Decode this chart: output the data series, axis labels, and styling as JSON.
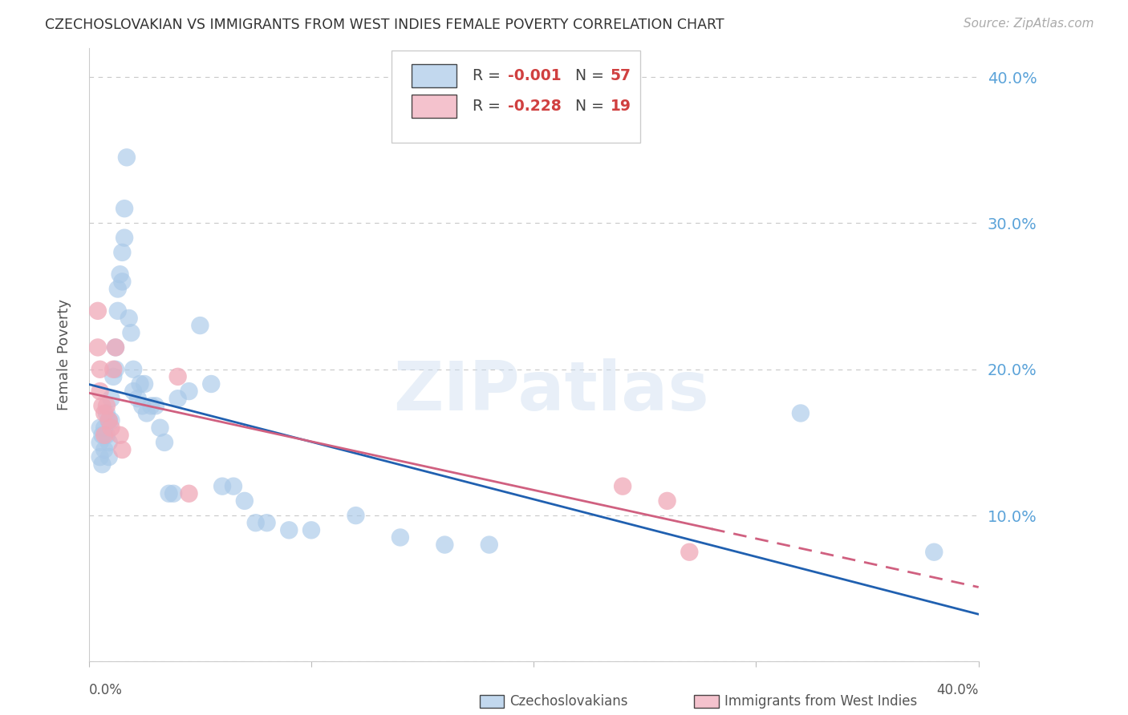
{
  "title": "CZECHOSLOVAKIAN VS IMMIGRANTS FROM WEST INDIES FEMALE POVERTY CORRELATION CHART",
  "source": "Source: ZipAtlas.com",
  "ylabel": "Female Poverty",
  "watermark": "ZIPatlas",
  "xlim": [
    0.0,
    0.4
  ],
  "ylim": [
    0.0,
    0.42
  ],
  "yticks": [
    0.0,
    0.1,
    0.2,
    0.3,
    0.4
  ],
  "ytick_labels": [
    "",
    "10.0%",
    "20.0%",
    "30.0%",
    "40.0%"
  ],
  "blue_color": "#a8c8e8",
  "pink_color": "#f0a8b8",
  "line_blue": "#2060b0",
  "line_pink": "#d06080",
  "axis_color": "#5ba3d9",
  "grid_color": "#c8c8c8",
  "title_color": "#333333",
  "czech_x": [
    0.005,
    0.005,
    0.005,
    0.006,
    0.006,
    0.007,
    0.007,
    0.008,
    0.008,
    0.009,
    0.009,
    0.009,
    0.01,
    0.01,
    0.011,
    0.012,
    0.012,
    0.013,
    0.013,
    0.014,
    0.015,
    0.015,
    0.016,
    0.016,
    0.017,
    0.018,
    0.019,
    0.02,
    0.02,
    0.022,
    0.023,
    0.024,
    0.025,
    0.026,
    0.028,
    0.03,
    0.032,
    0.034,
    0.036,
    0.038,
    0.04,
    0.045,
    0.05,
    0.055,
    0.06,
    0.065,
    0.07,
    0.075,
    0.08,
    0.09,
    0.1,
    0.12,
    0.14,
    0.16,
    0.18,
    0.32,
    0.38
  ],
  "czech_y": [
    0.16,
    0.15,
    0.14,
    0.155,
    0.135,
    0.16,
    0.145,
    0.17,
    0.155,
    0.165,
    0.15,
    0.14,
    0.18,
    0.165,
    0.195,
    0.215,
    0.2,
    0.255,
    0.24,
    0.265,
    0.28,
    0.26,
    0.31,
    0.29,
    0.345,
    0.235,
    0.225,
    0.2,
    0.185,
    0.18,
    0.19,
    0.175,
    0.19,
    0.17,
    0.175,
    0.175,
    0.16,
    0.15,
    0.115,
    0.115,
    0.18,
    0.185,
    0.23,
    0.19,
    0.12,
    0.12,
    0.11,
    0.095,
    0.095,
    0.09,
    0.09,
    0.1,
    0.085,
    0.08,
    0.08,
    0.17,
    0.075
  ],
  "west_x": [
    0.004,
    0.004,
    0.005,
    0.005,
    0.006,
    0.007,
    0.007,
    0.008,
    0.009,
    0.01,
    0.011,
    0.012,
    0.014,
    0.015,
    0.04,
    0.045,
    0.24,
    0.26,
    0.27
  ],
  "west_y": [
    0.215,
    0.24,
    0.2,
    0.185,
    0.175,
    0.17,
    0.155,
    0.175,
    0.165,
    0.16,
    0.2,
    0.215,
    0.155,
    0.145,
    0.195,
    0.115,
    0.12,
    0.11,
    0.075
  ]
}
